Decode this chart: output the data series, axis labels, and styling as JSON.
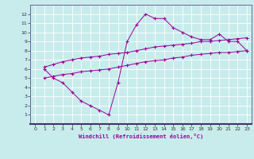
{
  "xlabel": "Windchill (Refroidissement éolien,°C)",
  "background_color": "#c8ecec",
  "line_color": "#990099",
  "xlim": [
    -0.5,
    23.5
  ],
  "ylim": [
    0,
    13
  ],
  "xticks": [
    0,
    1,
    2,
    3,
    4,
    5,
    6,
    7,
    8,
    9,
    10,
    11,
    12,
    13,
    14,
    15,
    16,
    17,
    18,
    19,
    20,
    21,
    22,
    23
  ],
  "yticks": [
    1,
    2,
    3,
    4,
    5,
    6,
    7,
    8,
    9,
    10,
    11,
    12
  ],
  "line1_x": [
    1,
    2,
    3,
    4,
    5,
    6,
    7,
    8,
    9,
    10,
    11,
    12,
    13,
    14,
    15,
    16,
    17,
    18,
    19,
    20,
    21,
    22,
    23
  ],
  "line1_y": [
    6.0,
    5.0,
    4.5,
    3.5,
    2.5,
    2.0,
    1.5,
    1.0,
    4.5,
    9.0,
    10.8,
    12.0,
    11.5,
    11.5,
    10.5,
    10.0,
    9.5,
    9.2,
    9.2,
    9.8,
    9.0,
    9.0,
    8.0
  ],
  "line2_x": [
    1,
    2,
    3,
    4,
    5,
    6,
    7,
    8,
    9,
    10,
    11,
    12,
    13,
    14,
    15,
    16,
    17,
    18,
    19,
    20,
    21,
    22,
    23
  ],
  "line2_y": [
    6.2,
    6.5,
    6.8,
    7.0,
    7.2,
    7.3,
    7.4,
    7.6,
    7.7,
    7.8,
    8.0,
    8.2,
    8.4,
    8.5,
    8.6,
    8.7,
    8.8,
    9.0,
    9.0,
    9.1,
    9.2,
    9.3,
    9.4
  ],
  "line3_x": [
    1,
    2,
    3,
    4,
    5,
    6,
    7,
    8,
    9,
    10,
    11,
    12,
    13,
    14,
    15,
    16,
    17,
    18,
    19,
    20,
    21,
    22,
    23
  ],
  "line3_y": [
    5.0,
    5.2,
    5.4,
    5.5,
    5.7,
    5.8,
    5.9,
    6.0,
    6.2,
    6.4,
    6.6,
    6.8,
    6.9,
    7.0,
    7.2,
    7.3,
    7.5,
    7.6,
    7.7,
    7.8,
    7.8,
    7.9,
    8.0
  ]
}
